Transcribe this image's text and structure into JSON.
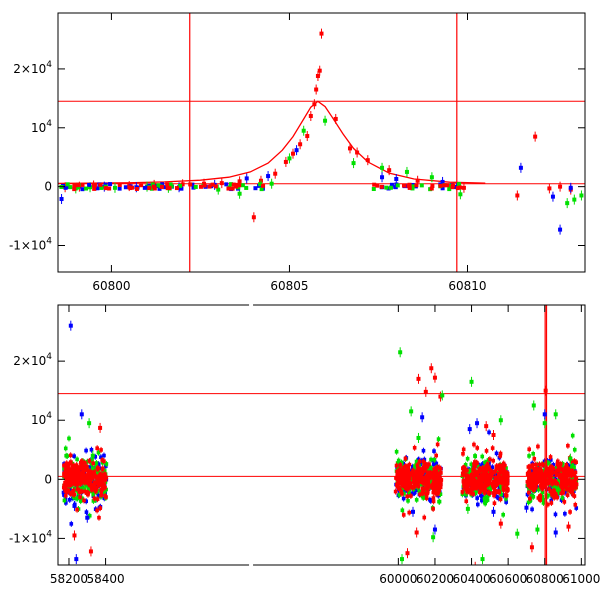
{
  "colors": {
    "red": "#ff0000",
    "green": "#00e000",
    "blue": "#0000ff",
    "axis": "#000000",
    "line": "#ff0000"
  },
  "chart_data": [
    {
      "type": "scatter",
      "xlim": [
        60798.5,
        60813.3
      ],
      "ylim": [
        -14500,
        29500
      ],
      "x_ticks": [
        60800,
        60805,
        60810
      ],
      "x_tick_labels": [
        "60800",
        "60805",
        "60810"
      ],
      "y_ticks": [
        -10000,
        0,
        10000,
        20000
      ],
      "y_tick_labels": [
        {
          "mantissa": "-1×10",
          "exp": "4"
        },
        {
          "mantissa": "0",
          "exp": ""
        },
        {
          "mantissa": "10",
          "exp": "4"
        },
        {
          "mantissa": "2×10",
          "exp": "4"
        }
      ],
      "grid": false,
      "hlines": [
        500,
        14500
      ],
      "vlines": [
        60802.2,
        60809.7
      ],
      "model_curve": {
        "x": [
          60798.5,
          60800.5,
          60801.5,
          60802.5,
          60803.3,
          60803.9,
          60804.4,
          60804.8,
          60805.1,
          60805.4,
          60805.6,
          60805.8,
          60806.0,
          60806.2,
          60806.5,
          60806.8,
          60807.2,
          60807.8,
          60808.5,
          60809.5,
          60810.5
        ],
        "y": [
          550,
          650,
          800,
          1100,
          1600,
          2500,
          4000,
          6200,
          8500,
          11500,
          13500,
          14500,
          13600,
          11800,
          9000,
          6500,
          4200,
          2300,
          1300,
          750,
          600
        ]
      },
      "series": [
        {
          "color": "red",
          "points": [
            [
              60798.7,
              -100
            ],
            [
              60799.1,
              0
            ],
            [
              60799.5,
              200
            ],
            [
              60800.5,
              100
            ],
            [
              60801.2,
              300
            ],
            [
              60802.0,
              400
            ],
            [
              60802.6,
              500
            ],
            [
              60803.1,
              600
            ],
            [
              60803.6,
              900
            ],
            [
              60804.0,
              -5200
            ],
            [
              60804.2,
              1000
            ],
            [
              60804.6,
              2200
            ],
            [
              60804.9,
              4200
            ],
            [
              60805.1,
              5600
            ],
            [
              60805.3,
              7200
            ],
            [
              60805.5,
              8600
            ],
            [
              60805.6,
              12000
            ],
            [
              60805.7,
              14000
            ],
            [
              60805.75,
              16500
            ],
            [
              60805.8,
              18800
            ],
            [
              60805.85,
              19700
            ],
            [
              60805.9,
              26000
            ],
            [
              60806.3,
              11500
            ],
            [
              60806.7,
              6500
            ],
            [
              60806.9,
              5800
            ],
            [
              60807.2,
              4500
            ],
            [
              60807.8,
              2800
            ],
            [
              60808.6,
              1000
            ],
            [
              60809.9,
              -200
            ],
            [
              60811.4,
              -1500
            ],
            [
              60811.9,
              8500
            ],
            [
              60812.3,
              -300
            ],
            [
              60812.6,
              0
            ],
            [
              60812.9,
              -500
            ]
          ]
        },
        {
          "color": "green",
          "points": [
            [
              60799.0,
              -300
            ],
            [
              60799.4,
              -100
            ],
            [
              60800.1,
              -200
            ],
            [
              60801.0,
              0
            ],
            [
              60801.6,
              -200
            ],
            [
              60803.0,
              -500
            ],
            [
              60803.6,
              -1200
            ],
            [
              60804.2,
              200
            ],
            [
              60804.5,
              500
            ],
            [
              60805.0,
              4800
            ],
            [
              60805.4,
              9500
            ],
            [
              60806.0,
              11200
            ],
            [
              60806.8,
              4000
            ],
            [
              60807.6,
              3200
            ],
            [
              60808.3,
              2500
            ],
            [
              60809.0,
              1600
            ],
            [
              60809.8,
              -1300
            ],
            [
              60812.8,
              -2800
            ],
            [
              60813.0,
              -2200
            ],
            [
              60813.2,
              -1500
            ]
          ]
        },
        {
          "color": "blue",
          "points": [
            [
              60798.6,
              -2100
            ],
            [
              60799.8,
              0
            ],
            [
              60800.7,
              -100
            ],
            [
              60801.9,
              -100
            ],
            [
              60802.9,
              300
            ],
            [
              60803.8,
              1400
            ],
            [
              60804.4,
              1800
            ],
            [
              60805.2,
              6200
            ],
            [
              60807.6,
              1600
            ],
            [
              60808.0,
              1300
            ],
            [
              60809.3,
              800
            ],
            [
              60811.5,
              3200
            ],
            [
              60812.4,
              -1700
            ],
            [
              60812.6,
              -7300
            ],
            [
              60812.9,
              -200
            ]
          ]
        }
      ]
    },
    {
      "type": "scatter",
      "xlim": [
        58140,
        61020
      ],
      "ylim": [
        -14500,
        29500
      ],
      "x_ticks": [
        58200,
        58400,
        60000,
        60200,
        60400,
        60600,
        60800,
        61000
      ],
      "x_tick_labels": [
        "58200",
        "58400",
        "60000",
        "60200",
        "60400",
        "60600",
        "60800",
        "61000"
      ],
      "y_ticks": [
        -10000,
        0,
        10000,
        20000
      ],
      "y_tick_labels": [
        {
          "mantissa": "-1×10",
          "exp": "4"
        },
        {
          "mantissa": "0",
          "exp": ""
        },
        {
          "mantissa": "10",
          "exp": "4"
        },
        {
          "mantissa": "2×10",
          "exp": "4"
        }
      ],
      "grid": false,
      "axis_break": [
        58410,
        59980
      ],
      "hlines": [
        500,
        14500
      ],
      "vlines": [
        60802.2,
        60809.7
      ],
      "seasons": [
        [
          58170,
          58405
        ],
        [
          59985,
          60235
        ],
        [
          60350,
          60600
        ],
        [
          60705,
          60975
        ]
      ],
      "series": [
        {
          "color": "red",
          "points": [
            [
              58230,
              -9500
            ],
            [
              58320,
              -12200
            ],
            [
              58370,
              8700
            ],
            [
              60050,
              -12500
            ],
            [
              60100,
              -9000
            ],
            [
              60110,
              17000
            ],
            [
              60150,
              14800
            ],
            [
              60180,
              18800
            ],
            [
              60200,
              17200
            ],
            [
              60230,
              14000
            ],
            [
              60420,
              -14800
            ],
            [
              60480,
              9000
            ],
            [
              60520,
              7500
            ],
            [
              60560,
              -7500
            ],
            [
              60730,
              -11500
            ],
            [
              60805,
              15000
            ],
            [
              60870,
              2500
            ],
            [
              60930,
              -8000
            ]
          ]
        },
        {
          "color": "green",
          "points": [
            [
              58310,
              9500
            ],
            [
              58330,
              4000
            ],
            [
              60010,
              21500
            ],
            [
              60020,
              -13500
            ],
            [
              60070,
              11500
            ],
            [
              60110,
              7000
            ],
            [
              60190,
              -9800
            ],
            [
              60240,
              14200
            ],
            [
              60380,
              -5000
            ],
            [
              60400,
              16500
            ],
            [
              60460,
              -13500
            ],
            [
              60560,
              10000
            ],
            [
              60650,
              -9200
            ],
            [
              60740,
              12500
            ],
            [
              60760,
              -8500
            ],
            [
              60800,
              9500
            ],
            [
              60860,
              11000
            ],
            [
              60940,
              3500
            ]
          ]
        },
        {
          "color": "blue",
          "points": [
            [
              58210,
              26000
            ],
            [
              58230,
              -4500
            ],
            [
              58240,
              -13500
            ],
            [
              58270,
              11000
            ],
            [
              58300,
              -6500
            ],
            [
              60080,
              -5500
            ],
            [
              60130,
              10500
            ],
            [
              60200,
              -8500
            ],
            [
              60390,
              8500
            ],
            [
              60430,
              9500
            ],
            [
              60520,
              -5500
            ],
            [
              60700,
              -4800
            ],
            [
              60800,
              11000
            ],
            [
              60860,
              -9000
            ]
          ]
        }
      ]
    }
  ]
}
